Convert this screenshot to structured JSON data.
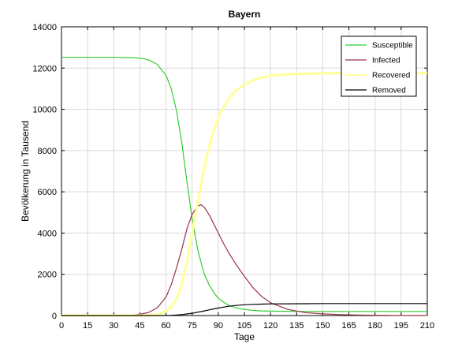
{
  "chart_data": {
    "type": "line",
    "title": "Bayern",
    "xlabel": "Tage",
    "ylabel": "Bevölkerung in Tausend",
    "xlim": [
      0,
      210
    ],
    "ylim": [
      0,
      14000
    ],
    "xticks": [
      0,
      15,
      30,
      45,
      60,
      75,
      90,
      105,
      120,
      135,
      150,
      165,
      180,
      195,
      210
    ],
    "yticks": [
      0,
      2000,
      4000,
      6000,
      8000,
      10000,
      12000,
      14000
    ],
    "grid": true,
    "legend_position": "top-right",
    "x": [
      0,
      10,
      20,
      30,
      40,
      45,
      50,
      55,
      60,
      63,
      66,
      69,
      72,
      75,
      78,
      80,
      82,
      85,
      88,
      90,
      93,
      96,
      100,
      105,
      110,
      115,
      120,
      130,
      140,
      150,
      160,
      170,
      180,
      190,
      200,
      210
    ],
    "series": [
      {
        "name": "Susceptible",
        "color": "#33cc33",
        "values": [
          12520,
          12520,
          12520,
          12520,
          12510,
          12480,
          12400,
          12180,
          11650,
          11000,
          9950,
          8400,
          6500,
          4700,
          3300,
          2600,
          2000,
          1450,
          1050,
          850,
          650,
          500,
          380,
          300,
          250,
          225,
          215,
          205,
          200,
          200,
          200,
          200,
          200,
          200,
          200,
          200
        ]
      },
      {
        "name": "Infected",
        "color": "#99334d",
        "values": [
          0,
          0,
          0,
          0,
          20,
          60,
          150,
          380,
          900,
          1500,
          2300,
          3200,
          4200,
          4900,
          5300,
          5380,
          5250,
          4850,
          4350,
          4000,
          3500,
          3050,
          2500,
          1900,
          1350,
          920,
          620,
          300,
          140,
          80,
          45,
          25,
          15,
          8,
          5,
          3
        ]
      },
      {
        "name": "Recovered",
        "color": "#ffff99",
        "values": [
          0,
          0,
          0,
          0,
          0,
          0,
          10,
          50,
          200,
          420,
          800,
          1500,
          2600,
          4000,
          5400,
          6300,
          7200,
          8300,
          9100,
          9600,
          10100,
          10500,
          10900,
          11200,
          11400,
          11550,
          11620,
          11700,
          11730,
          11740,
          11750,
          11760,
          11760,
          11760,
          11760,
          11760
        ]
      },
      {
        "name": "Removed",
        "color": "#000000",
        "values": [
          0,
          0,
          0,
          0,
          0,
          0,
          0,
          0,
          5,
          12,
          25,
          45,
          75,
          110,
          160,
          190,
          225,
          280,
          330,
          365,
          410,
          450,
          490,
          525,
          545,
          555,
          565,
          570,
          575,
          580,
          580,
          580,
          580,
          580,
          580,
          580
        ]
      }
    ]
  }
}
